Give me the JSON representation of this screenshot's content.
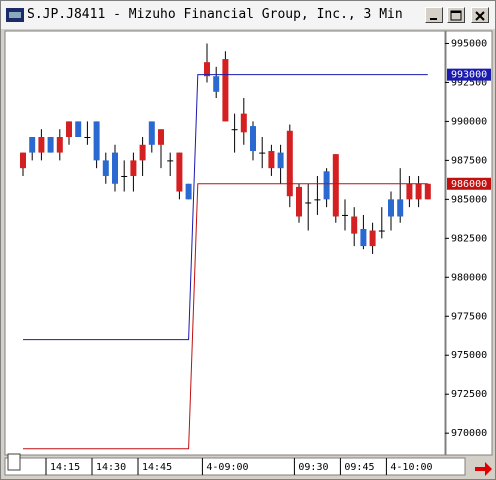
{
  "chart_data": {
    "type": "candlestick",
    "title": "S.JP.J8411 - Mizuho Financial Group, Inc., 3 Min",
    "categories": [
      null,
      null,
      null,
      "14:15",
      null,
      null,
      null,
      null,
      "14:30",
      null,
      null,
      null,
      null,
      "14:45",
      null,
      null,
      null,
      null,
      null,
      null,
      "4-09:00",
      null,
      null,
      null,
      null,
      null,
      null,
      null,
      null,
      null,
      "09:30",
      null,
      null,
      null,
      null,
      "09:45",
      null,
      null,
      null,
      null,
      "4-10:00",
      null,
      null,
      null,
      null
    ],
    "open": [
      987000,
      989000,
      988000,
      989000,
      988000,
      989000,
      990000,
      989000,
      990000,
      987500,
      988000,
      986500,
      986500,
      987500,
      990000,
      988500,
      987500,
      985500,
      986000,
      null,
      992900,
      992900,
      990000,
      989500,
      989300,
      989700,
      988000,
      987000,
      988000,
      985200,
      983900,
      984800,
      985000,
      986800,
      983900,
      984000,
      982800,
      983100,
      982000,
      983000,
      985000,
      985000,
      985000,
      985000,
      985000
    ],
    "high": [
      988000,
      989000,
      989500,
      989000,
      989500,
      990000,
      990000,
      990000,
      990000,
      988000,
      988500,
      987500,
      988000,
      989000,
      990000,
      989500,
      988000,
      988000,
      986000,
      null,
      995000,
      993500,
      994500,
      990500,
      991500,
      990000,
      989000,
      988500,
      988500,
      989800,
      986000,
      986000,
      986500,
      987000,
      987900,
      985000,
      984500,
      984000,
      983500,
      984500,
      985500,
      987000,
      986500,
      986500,
      986000
    ],
    "low": [
      986500,
      987500,
      987500,
      988000,
      987500,
      988500,
      989000,
      988500,
      987000,
      986000,
      985500,
      985500,
      985500,
      986500,
      988000,
      987000,
      986500,
      985000,
      985000,
      null,
      992500,
      991500,
      990000,
      988000,
      988500,
      987500,
      987000,
      986500,
      986000,
      984500,
      983500,
      983000,
      984000,
      984500,
      983500,
      983000,
      982000,
      981800,
      981500,
      982500,
      983000,
      983500,
      984500,
      984500,
      985000
    ],
    "close": [
      988000,
      988000,
      989000,
      988000,
      989000,
      990000,
      989000,
      989000,
      987500,
      986500,
      986000,
      986500,
      987500,
      988500,
      988500,
      989500,
      987500,
      988000,
      985000,
      null,
      993800,
      991900,
      994000,
      989500,
      990500,
      988100,
      988000,
      988100,
      987000,
      989400,
      985800,
      984800,
      985000,
      985000,
      987900,
      984000,
      983900,
      982000,
      983000,
      983000,
      983900,
      983900,
      986000,
      986000,
      986000
    ],
    "up_color": "#d42020",
    "down_color": "#2a6ad0",
    "lines": [
      {
        "color": "#1a1ab0",
        "values": [
          976000,
          976000,
          976000,
          976000,
          976000,
          976000,
          976000,
          976000,
          976000,
          976000,
          976000,
          976000,
          976000,
          976000,
          976000,
          976000,
          976000,
          976000,
          976000,
          993000,
          993000,
          993000,
          993000,
          993000,
          993000,
          993000,
          993000,
          993000,
          993000,
          993000,
          993000,
          993000,
          993000,
          993000,
          993000,
          993000,
          993000,
          993000,
          993000,
          993000,
          993000,
          993000,
          993000,
          993000,
          993000
        ]
      },
      {
        "color": "#c01010",
        "values": [
          969000,
          969000,
          969000,
          969000,
          969000,
          969000,
          969000,
          969000,
          969000,
          969000,
          969000,
          969000,
          969000,
          969000,
          969000,
          969000,
          969000,
          969000,
          969000,
          986000,
          986000,
          986000,
          986000,
          986000,
          986000,
          986000,
          986000,
          986000,
          986000,
          986000,
          986000,
          986000,
          986000,
          986000,
          986000,
          986000,
          986000,
          986000,
          986000,
          986000,
          986000,
          986000,
          986000,
          986000,
          986000
        ]
      }
    ],
    "ylim": [
      968600,
      995800
    ],
    "yticks": [
      970000,
      972500,
      975000,
      977500,
      980000,
      982500,
      985000,
      987500,
      990000,
      992500,
      995000
    ]
  }
}
